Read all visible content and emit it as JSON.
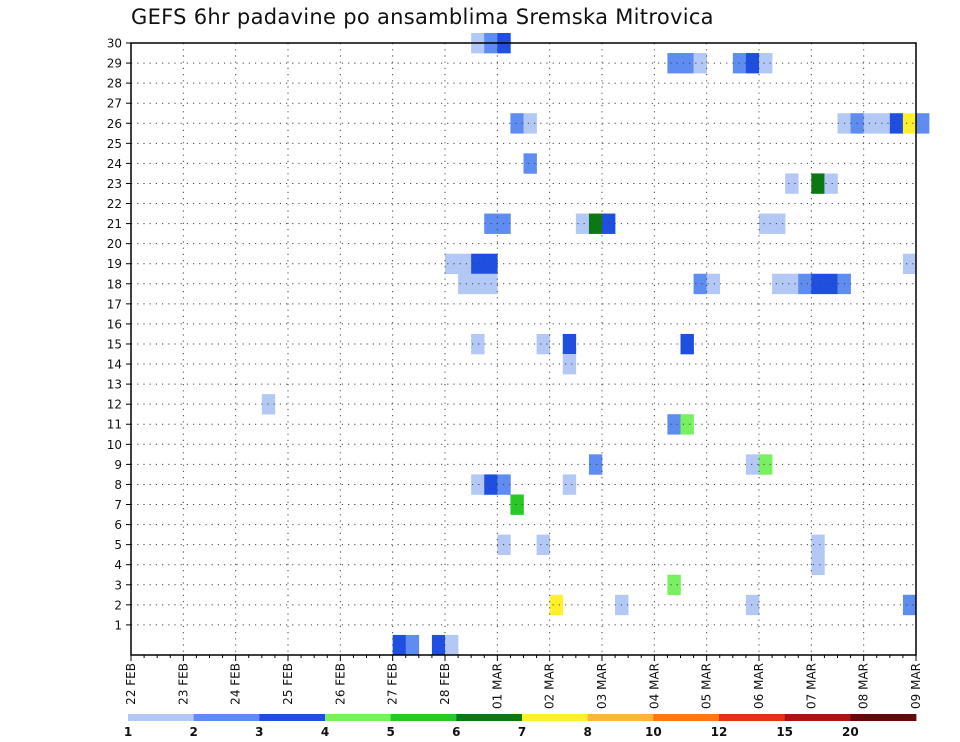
{
  "chart_data": {
    "type": "heatmap",
    "title": "GEFS 6hr padavine po ansamblima Sremska Mitrovica",
    "xlabel": "",
    "ylabel": "",
    "x_ticks": [
      "22 FEB",
      "23 FEB",
      "24 FEB",
      "25 FEB",
      "26 FEB",
      "27 FEB",
      "28 FEB",
      "01 MAR",
      "02 MAR",
      "03 MAR",
      "04 MAR",
      "05 MAR",
      "06 MAR",
      "07 MAR",
      "08 MAR",
      "09 MAR"
    ],
    "y_ticks": [
      1,
      2,
      3,
      4,
      5,
      6,
      7,
      8,
      9,
      10,
      11,
      12,
      13,
      14,
      15,
      16,
      17,
      18,
      19,
      20,
      21,
      22,
      23,
      24,
      25,
      26,
      27,
      28,
      29,
      30
    ],
    "x_unit": "6-hour steps since 22 FEB 00 UTC",
    "grid": true,
    "colorbar": {
      "labels": [
        "1",
        "2",
        "3",
        "4",
        "5",
        "6",
        "7",
        "8",
        "10",
        "12",
        "15",
        "20"
      ],
      "colors": [
        "#b4c8f5",
        "#5e8cf0",
        "#1e4fe0",
        "#78f060",
        "#28c828",
        "#0a7814",
        "#fff028",
        "#ffb43c",
        "#ff7814",
        "#e63214",
        "#aa1414",
        "#640a0a"
      ]
    },
    "cells": [
      {
        "member": 30,
        "t": 26.0,
        "v": 1
      },
      {
        "member": 30,
        "t": 27.0,
        "v": 2
      },
      {
        "member": 30,
        "t": 28.0,
        "v": 3
      },
      {
        "member": 29,
        "t": 41.0,
        "v": 2
      },
      {
        "member": 29,
        "t": 42.0,
        "v": 2
      },
      {
        "member": 29,
        "t": 43.0,
        "v": 1
      },
      {
        "member": 29,
        "t": 46.0,
        "v": 2
      },
      {
        "member": 29,
        "t": 47.0,
        "v": 3
      },
      {
        "member": 29,
        "t": 48.0,
        "v": 1
      },
      {
        "member": 26,
        "t": 29.0,
        "v": 2
      },
      {
        "member": 26,
        "t": 30.0,
        "v": 1
      },
      {
        "member": 26,
        "t": 54.0,
        "v": 1
      },
      {
        "member": 26,
        "t": 55.0,
        "v": 2
      },
      {
        "member": 26,
        "t": 56.0,
        "v": 1
      },
      {
        "member": 26,
        "t": 57.0,
        "v": 1
      },
      {
        "member": 26,
        "t": 58.0,
        "v": 3
      },
      {
        "member": 26,
        "t": 59.0,
        "v": 7
      },
      {
        "member": 26,
        "t": 60.0,
        "v": 2
      },
      {
        "member": 24,
        "t": 30.0,
        "v": 2
      },
      {
        "member": 23,
        "t": 50.0,
        "v": 1
      },
      {
        "member": 23,
        "t": 52.0,
        "v": 6
      },
      {
        "member": 23,
        "t": 53.0,
        "v": 1
      },
      {
        "member": 21,
        "t": 27.0,
        "v": 2
      },
      {
        "member": 21,
        "t": 28.0,
        "v": 2
      },
      {
        "member": 21,
        "t": 34.0,
        "v": 1
      },
      {
        "member": 21,
        "t": 35.0,
        "v": 6
      },
      {
        "member": 21,
        "t": 36.0,
        "v": 3
      },
      {
        "member": 21,
        "t": 48.0,
        "v": 1
      },
      {
        "member": 21,
        "t": 49.0,
        "v": 1
      },
      {
        "member": 19,
        "t": 24.0,
        "v": 1
      },
      {
        "member": 19,
        "t": 25.0,
        "v": 1
      },
      {
        "member": 19,
        "t": 26.0,
        "v": 3
      },
      {
        "member": 19,
        "t": 27.0,
        "v": 3
      },
      {
        "member": 19,
        "t": 59.0,
        "v": 1
      },
      {
        "member": 18,
        "t": 25.0,
        "v": 1
      },
      {
        "member": 18,
        "t": 26.0,
        "v": 1
      },
      {
        "member": 18,
        "t": 27.0,
        "v": 1
      },
      {
        "member": 18,
        "t": 43.0,
        "v": 2
      },
      {
        "member": 18,
        "t": 44.0,
        "v": 1
      },
      {
        "member": 18,
        "t": 49.0,
        "v": 1
      },
      {
        "member": 18,
        "t": 50.0,
        "v": 1
      },
      {
        "member": 18,
        "t": 51.0,
        "v": 2
      },
      {
        "member": 18,
        "t": 52.0,
        "v": 3
      },
      {
        "member": 18,
        "t": 53.0,
        "v": 3
      },
      {
        "member": 18,
        "t": 54.0,
        "v": 2
      },
      {
        "member": 15,
        "t": 26.0,
        "v": 1
      },
      {
        "member": 15,
        "t": 31.0,
        "v": 1
      },
      {
        "member": 15,
        "t": 33.0,
        "v": 3
      },
      {
        "member": 15,
        "t": 42.0,
        "v": 3
      },
      {
        "member": 14,
        "t": 33.0,
        "v": 1
      },
      {
        "member": 12,
        "t": 10.0,
        "v": 1
      },
      {
        "member": 11,
        "t": 41.0,
        "v": 2
      },
      {
        "member": 11,
        "t": 42.0,
        "v": 4
      },
      {
        "member": 9,
        "t": 35.0,
        "v": 2
      },
      {
        "member": 9,
        "t": 47.0,
        "v": 1
      },
      {
        "member": 9,
        "t": 48.0,
        "v": 4
      },
      {
        "member": 8,
        "t": 26.0,
        "v": 1
      },
      {
        "member": 8,
        "t": 27.0,
        "v": 3
      },
      {
        "member": 8,
        "t": 28.0,
        "v": 2
      },
      {
        "member": 8,
        "t": 33.0,
        "v": 1
      },
      {
        "member": 7,
        "t": 29.0,
        "v": 5
      },
      {
        "member": 5,
        "t": 28.0,
        "v": 1
      },
      {
        "member": 5,
        "t": 31.0,
        "v": 1
      },
      {
        "member": 5,
        "t": 52.0,
        "v": 1
      },
      {
        "member": 4,
        "t": 52.0,
        "v": 1
      },
      {
        "member": 3,
        "t": 41.0,
        "v": 4
      },
      {
        "member": 2,
        "t": 32.0,
        "v": 7
      },
      {
        "member": 2,
        "t": 37.0,
        "v": 1
      },
      {
        "member": 2,
        "t": 47.0,
        "v": 1
      },
      {
        "member": 2,
        "t": 59.0,
        "v": 2
      },
      {
        "member": 0,
        "t": 20.0,
        "v": 3
      },
      {
        "member": 0,
        "t": 21.0,
        "v": 2
      },
      {
        "member": 0,
        "t": 23.0,
        "v": 3
      },
      {
        "member": 0,
        "t": 24.0,
        "v": 1
      }
    ]
  }
}
